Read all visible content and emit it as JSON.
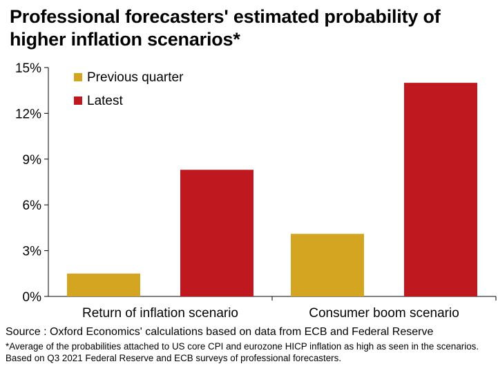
{
  "chart_data": {
    "type": "bar",
    "title": "Professional forecasters' estimated probability of higher inflation scenarios*",
    "categories": [
      "Return of inflation scenario",
      "Consumer boom scenario"
    ],
    "series": [
      {
        "name": "Previous quarter",
        "color": "#d4a520",
        "values": [
          1.5,
          4.1
        ]
      },
      {
        "name": "Latest",
        "color": "#c0181f",
        "values": [
          8.3,
          14.0
        ]
      }
    ],
    "ylim": [
      0,
      15
    ],
    "yticks": [
      0,
      3,
      6,
      9,
      12,
      15
    ],
    "ytick_labels": [
      "0%",
      "3%",
      "6%",
      "9%",
      "12%",
      "15%"
    ],
    "xlabel": "",
    "ylabel": "",
    "grid": false,
    "legend_position": "top-left"
  },
  "source": "Source : Oxford Economics' calculations based on data from ECB and Federal Reserve",
  "footnote": "*Average of the probabilities attached to US core CPI and eurozone HICP inflation as high as seen in the scenarios. Based on Q3 2021 Federal Reserve and ECB surveys of professional forecasters."
}
